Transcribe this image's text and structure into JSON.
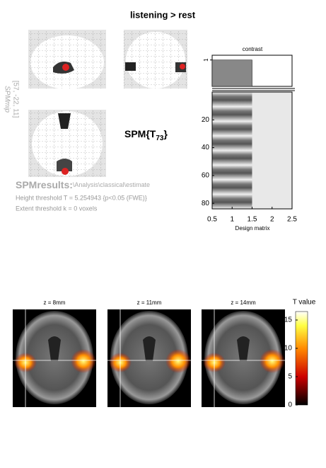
{
  "title": "listening > rest",
  "mip": {
    "label": "SPMmip",
    "coords": "[57, -22, 11]"
  },
  "stat_label": {
    "prefix": "SPM{T",
    "subscript": "73",
    "suffix": "}"
  },
  "results": {
    "heading": "SPMresults:",
    "path": "\\Analysis\\classical\\estimate",
    "height_threshold": "Height threshold T = 5.254943  {p<0.05 (FWE)}",
    "extent_threshold": "Extent threshold k = 0 voxels"
  },
  "contrast": {
    "title": "contrast",
    "weights": [
      1,
      0
    ],
    "ylim": [
      0,
      1.18
    ],
    "yticks": [
      1
    ]
  },
  "design_matrix": {
    "xlabel": "Design matrix",
    "xlim": [
      0.5,
      2.5
    ],
    "xticks": [
      0.5,
      1,
      1.5,
      2,
      2.5
    ],
    "ylim": [
      0,
      84
    ],
    "yticks": [
      20,
      40,
      60,
      80
    ]
  },
  "slices": [
    {
      "label": "z = 8mm"
    },
    {
      "label": "z = 11mm"
    },
    {
      "label": "z = 14mm"
    }
  ],
  "colorbar": {
    "label": "T value",
    "clim": [
      0,
      16.5
    ],
    "ticks": [
      0,
      5,
      10,
      15
    ]
  }
}
